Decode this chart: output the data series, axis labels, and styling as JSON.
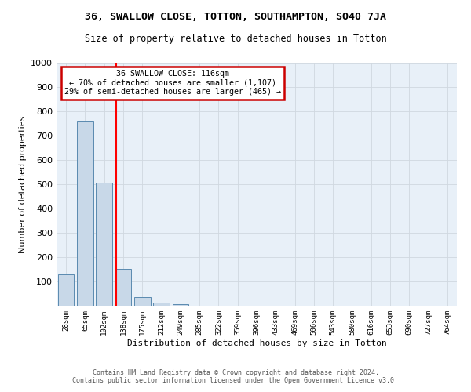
{
  "title": "36, SWALLOW CLOSE, TOTTON, SOUTHAMPTON, SO40 7JA",
  "subtitle": "Size of property relative to detached houses in Totton",
  "xlabel": "Distribution of detached houses by size in Totton",
  "ylabel": "Number of detached properties",
  "bin_labels": [
    "28sqm",
    "65sqm",
    "102sqm",
    "138sqm",
    "175sqm",
    "212sqm",
    "249sqm",
    "285sqm",
    "322sqm",
    "359sqm",
    "396sqm",
    "433sqm",
    "469sqm",
    "506sqm",
    "543sqm",
    "580sqm",
    "616sqm",
    "653sqm",
    "690sqm",
    "727sqm",
    "764sqm"
  ],
  "bar_values": [
    128,
    762,
    505,
    152,
    37,
    14,
    8,
    0,
    0,
    0,
    0,
    0,
    0,
    0,
    0,
    0,
    0,
    0,
    0,
    0,
    0
  ],
  "bar_color": "#c8d8e8",
  "bar_edge_color": "#5a8ab0",
  "red_line_x": 2.62,
  "annotation_line0": "36 SWALLOW CLOSE: 116sqm",
  "annotation_line1": "← 70% of detached houses are smaller (1,107)",
  "annotation_line2": "29% of semi-detached houses are larger (465) →",
  "annotation_box_color": "#ffffff",
  "annotation_box_edge": "#cc0000",
  "ylim": [
    0,
    1000
  ],
  "yticks": [
    0,
    100,
    200,
    300,
    400,
    500,
    600,
    700,
    800,
    900,
    1000
  ],
  "grid_color": "#d0d8e0",
  "background_color": "#e8f0f8",
  "footer_line1": "Contains HM Land Registry data © Crown copyright and database right 2024.",
  "footer_line2": "Contains public sector information licensed under the Open Government Licence v3.0."
}
